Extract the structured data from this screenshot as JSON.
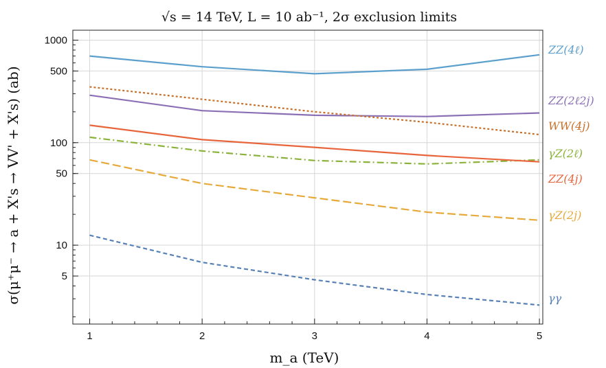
{
  "chart_data": {
    "type": "line",
    "title": "√s = 14 TeV,  L = 10 ab⁻¹,  2σ exclusion limits",
    "xlabel": "m_a (TeV)",
    "ylabel": "σ(μ⁺μ⁻ → a + X's → VV' + X's) (ab)",
    "x": [
      1,
      2,
      3,
      4,
      5
    ],
    "xlim": [
      0.85,
      5.03
    ],
    "ylim": [
      1.7,
      1250
    ],
    "yscale": "log",
    "x_ticks": [
      1,
      2,
      3,
      4,
      5
    ],
    "y_ticks": [
      5,
      10,
      50,
      100,
      500,
      1000
    ],
    "grid": true,
    "series": [
      {
        "name": "ZZ(4ℓ)",
        "color": "#5b9fcc",
        "dash": "solid",
        "values": [
          700,
          550,
          470,
          520,
          720
        ]
      },
      {
        "name": "ZZ(2ℓ2j)",
        "color": "#8b6fb5",
        "dash": "solid",
        "values": [
          290,
          205,
          185,
          180,
          195
        ]
      },
      {
        "name": "WW(4j)",
        "color": "#c8702a",
        "dash": "dotted",
        "values": [
          350,
          265,
          200,
          158,
          120
        ]
      },
      {
        "name": "γZ(2ℓ)",
        "color": "#8bb23a",
        "dash": "dashdot",
        "values": [
          113,
          83,
          67,
          62,
          68
        ]
      },
      {
        "name": "ZZ(4j)",
        "color": "#e8643a",
        "dash": "solid",
        "values": [
          148,
          107,
          90,
          75,
          65
        ]
      },
      {
        "name": "γZ(2j)",
        "color": "#e6a93a",
        "dash": "longdash",
        "values": [
          68,
          40,
          29,
          21,
          17.5
        ]
      },
      {
        "name": "γγ",
        "color": "#5780b5",
        "dash": "dashed",
        "values": [
          12.5,
          6.8,
          4.6,
          3.3,
          2.6
        ]
      }
    ]
  }
}
